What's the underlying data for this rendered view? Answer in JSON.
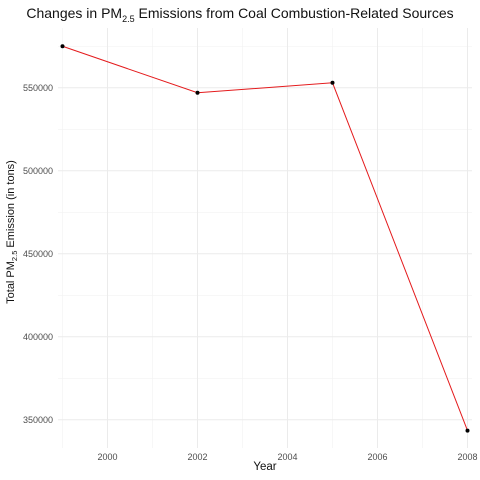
{
  "chart_data": {
    "type": "line",
    "title": {
      "prefix": "Changes in PM",
      "subscript": "2.5",
      "suffix": " Emissions from Coal Combustion-Related Sources"
    },
    "xlabel": "Year",
    "ylabel": {
      "prefix": "Total PM",
      "subscript": "2.5",
      "suffix": " Emission (in tons)"
    },
    "x": [
      1999,
      2002,
      2005,
      2008
    ],
    "series": [
      {
        "values": [
          575000,
          547000,
          553000,
          343500
        ],
        "color": "#e41a1c",
        "marker_color": "#000000"
      }
    ],
    "xlim": [
      1998.9,
      2008.1
    ],
    "ylim": [
      333000,
      586000
    ],
    "x_ticks": [
      2000,
      2002,
      2004,
      2006,
      2008
    ],
    "x_tick_labels": [
      "2000",
      "2002",
      "2004",
      "2006",
      "2008"
    ],
    "y_ticks": [
      350000,
      400000,
      450000,
      500000,
      550000
    ],
    "y_tick_labels": [
      "350000",
      "400000",
      "450000",
      "500000",
      "550000"
    ],
    "grid": true,
    "theme": "minimal"
  }
}
